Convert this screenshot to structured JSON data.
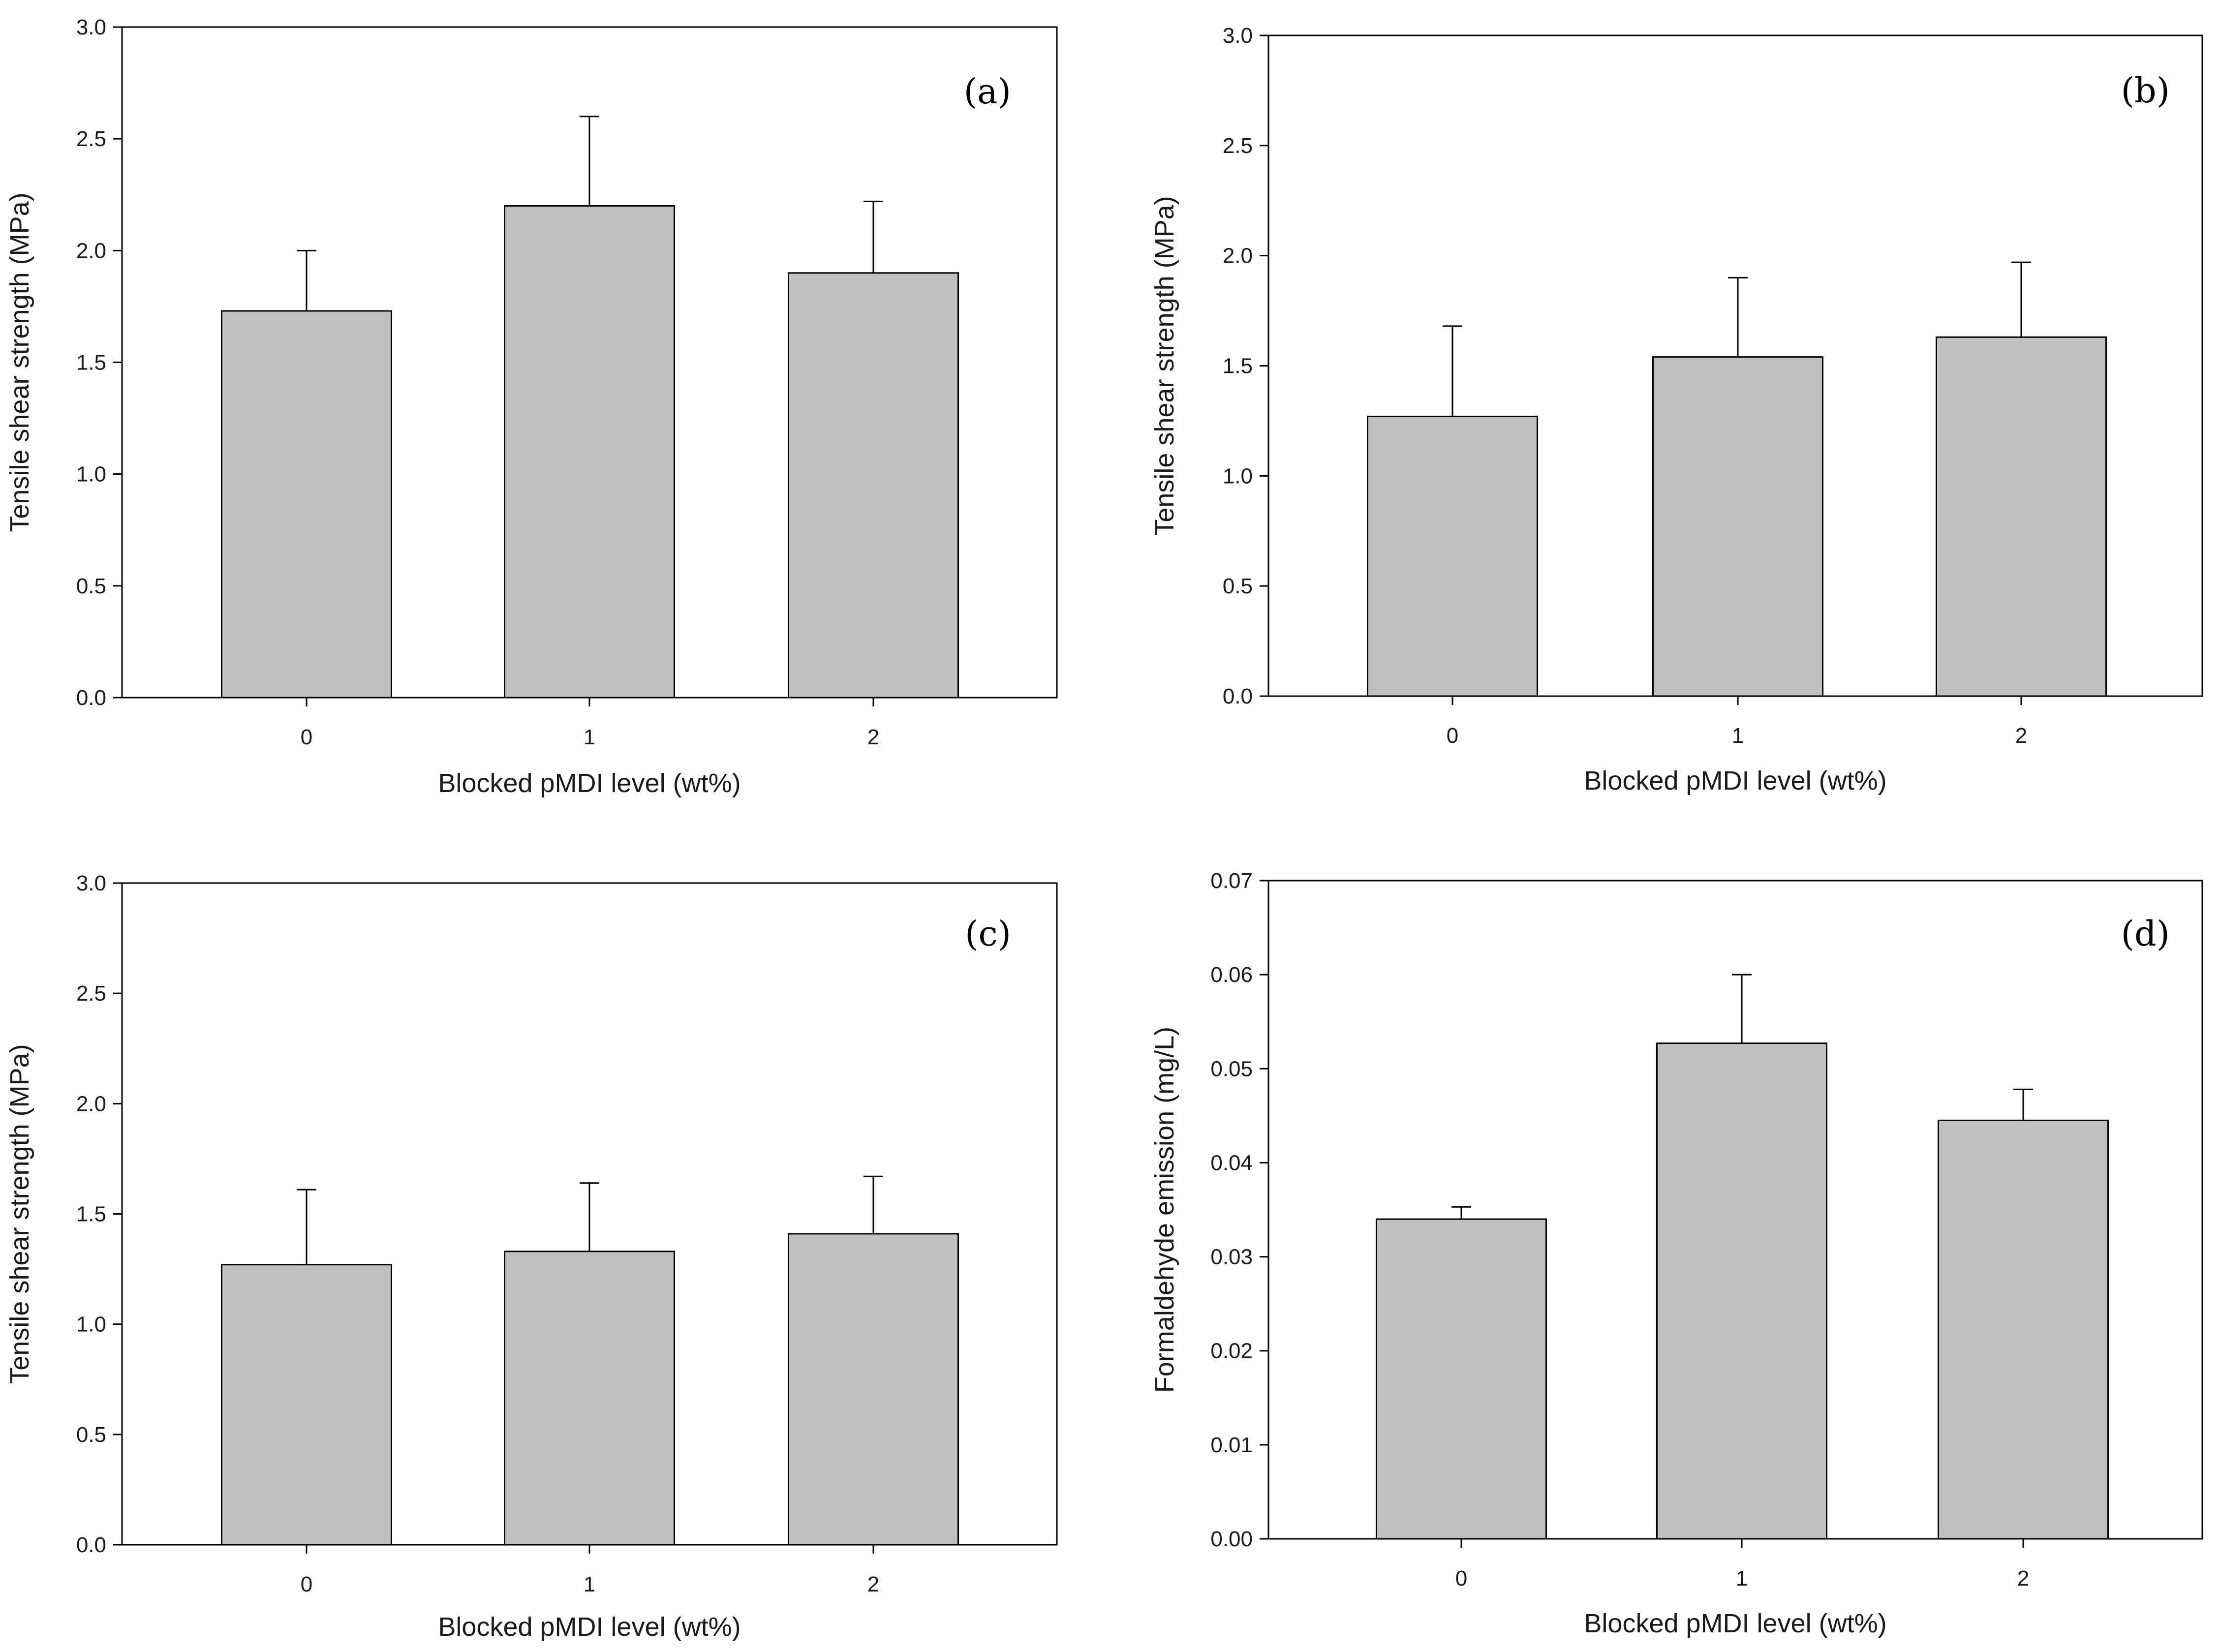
{
  "colors": {
    "bar_fill": "#bfbfbf",
    "axis": "#000000",
    "background": "#ffffff"
  },
  "chart_data": [
    {
      "type": "bar",
      "panel_label": "(a)",
      "categories": [
        "0",
        "1",
        "2"
      ],
      "series": [
        {
          "values": [
            1.73,
            2.2,
            1.9
          ],
          "error": [
            0.27,
            0.4,
            0.32
          ]
        }
      ],
      "xlabel": "Blocked pMDI level (wt%)",
      "ylabel": "Tensile shear strength (MPa)",
      "ylim": [
        0,
        3.0
      ],
      "yticks": [
        "0.0",
        "0.5",
        "1.0",
        "1.5",
        "2.0",
        "2.5",
        "3.0"
      ],
      "grid": false
    },
    {
      "type": "bar",
      "panel_label": "(b)",
      "categories": [
        "0",
        "1",
        "2"
      ],
      "series": [
        {
          "values": [
            1.27,
            1.54,
            1.63
          ],
          "error": [
            0.41,
            0.36,
            0.34
          ]
        }
      ],
      "xlabel": "Blocked pMDI level (wt%)",
      "ylabel": "Tensile shear strength (MPa)",
      "ylim": [
        0,
        3.0
      ],
      "yticks": [
        "0.0",
        "0.5",
        "1.0",
        "1.5",
        "2.0",
        "2.5",
        "3.0"
      ],
      "grid": false
    },
    {
      "type": "bar",
      "panel_label": "(c)",
      "categories": [
        "0",
        "1",
        "2"
      ],
      "series": [
        {
          "values": [
            1.27,
            1.33,
            1.41
          ],
          "error": [
            0.34,
            0.31,
            0.26
          ]
        }
      ],
      "xlabel": "Blocked pMDI level (wt%)",
      "ylabel": "Tensile shear strength (MPa)",
      "ylim": [
        0,
        3.0
      ],
      "yticks": [
        "0.0",
        "0.5",
        "1.0",
        "1.5",
        "2.0",
        "2.5",
        "3.0"
      ],
      "grid": false
    },
    {
      "type": "bar",
      "panel_label": "(d)",
      "categories": [
        "0",
        "1",
        "2"
      ],
      "series": [
        {
          "values": [
            0.034,
            0.0527,
            0.0445
          ],
          "error": [
            0.0013,
            0.0073,
            0.0033
          ]
        }
      ],
      "xlabel": "Blocked pMDI level (wt%)",
      "ylabel": "Formaldehyde emission (mg/L)",
      "ylim": [
        0,
        0.07
      ],
      "yticks": [
        "0.00",
        "0.01",
        "0.02",
        "0.03",
        "0.04",
        "0.05",
        "0.06",
        "0.07"
      ],
      "grid": false
    }
  ]
}
